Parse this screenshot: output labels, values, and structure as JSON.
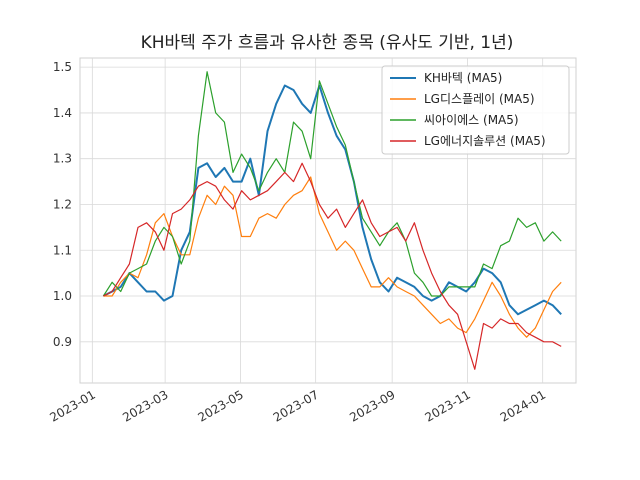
{
  "chart_data": {
    "type": "line",
    "title": "KH바텍 주가 흐름과 유사한 종목 (유사도 기반, 1년)",
    "xlabel": "",
    "ylabel": "",
    "x_ticks": [
      "2023-01",
      "2023-03",
      "2023-05",
      "2023-07",
      "2023-09",
      "2023-11",
      "2024-01"
    ],
    "y_ticks": [
      "0.9",
      "1.0",
      "1.1",
      "1.2",
      "1.3",
      "1.4",
      "1.5"
    ],
    "xlim": [
      "2022-12-22",
      "2024-01-28"
    ],
    "ylim": [
      0.81,
      1.52
    ],
    "grid": true,
    "legend_position": "top-right",
    "series": [
      {
        "name": "KH바텍 (MA5)",
        "color": "#1f77b4",
        "points": [
          [
            "2023-01-10",
            1.0
          ],
          [
            "2023-01-17",
            1.01
          ],
          [
            "2023-01-24",
            1.02
          ],
          [
            "2023-01-31",
            1.05
          ],
          [
            "2023-02-07",
            1.03
          ],
          [
            "2023-02-14",
            1.01
          ],
          [
            "2023-02-21",
            1.01
          ],
          [
            "2023-02-28",
            0.99
          ],
          [
            "2023-03-07",
            1.0
          ],
          [
            "2023-03-14",
            1.1
          ],
          [
            "2023-03-21",
            1.14
          ],
          [
            "2023-03-28",
            1.28
          ],
          [
            "2023-04-04",
            1.29
          ],
          [
            "2023-04-11",
            1.26
          ],
          [
            "2023-04-18",
            1.28
          ],
          [
            "2023-04-25",
            1.25
          ],
          [
            "2023-05-02",
            1.25
          ],
          [
            "2023-05-09",
            1.3
          ],
          [
            "2023-05-16",
            1.22
          ],
          [
            "2023-05-23",
            1.36
          ],
          [
            "2023-05-30",
            1.42
          ],
          [
            "2023-06-06",
            1.46
          ],
          [
            "2023-06-13",
            1.45
          ],
          [
            "2023-06-20",
            1.42
          ],
          [
            "2023-06-27",
            1.4
          ],
          [
            "2023-07-04",
            1.46
          ],
          [
            "2023-07-11",
            1.4
          ],
          [
            "2023-07-18",
            1.35
          ],
          [
            "2023-07-25",
            1.32
          ],
          [
            "2023-08-01",
            1.25
          ],
          [
            "2023-08-08",
            1.15
          ],
          [
            "2023-08-15",
            1.08
          ],
          [
            "2023-08-22",
            1.03
          ],
          [
            "2023-08-29",
            1.01
          ],
          [
            "2023-09-05",
            1.04
          ],
          [
            "2023-09-12",
            1.03
          ],
          [
            "2023-09-19",
            1.02
          ],
          [
            "2023-09-26",
            1.0
          ],
          [
            "2023-10-03",
            0.99
          ],
          [
            "2023-10-10",
            1.0
          ],
          [
            "2023-10-17",
            1.03
          ],
          [
            "2023-10-24",
            1.02
          ],
          [
            "2023-10-31",
            1.01
          ],
          [
            "2023-11-07",
            1.03
          ],
          [
            "2023-11-14",
            1.06
          ],
          [
            "2023-11-21",
            1.05
          ],
          [
            "2023-11-28",
            1.03
          ],
          [
            "2023-12-05",
            0.98
          ],
          [
            "2023-12-12",
            0.96
          ],
          [
            "2023-12-19",
            0.97
          ],
          [
            "2023-12-26",
            0.98
          ],
          [
            "2024-01-02",
            0.99
          ],
          [
            "2024-01-09",
            0.98
          ],
          [
            "2024-01-16",
            0.96
          ]
        ]
      },
      {
        "name": "LG디스플레이 (MA5)",
        "color": "#ff7f0e",
        "points": [
          [
            "2023-01-10",
            1.0
          ],
          [
            "2023-01-17",
            1.0
          ],
          [
            "2023-01-24",
            1.03
          ],
          [
            "2023-01-31",
            1.05
          ],
          [
            "2023-02-07",
            1.04
          ],
          [
            "2023-02-14",
            1.09
          ],
          [
            "2023-02-21",
            1.16
          ],
          [
            "2023-02-28",
            1.18
          ],
          [
            "2023-03-07",
            1.13
          ],
          [
            "2023-03-14",
            1.09
          ],
          [
            "2023-03-21",
            1.09
          ],
          [
            "2023-03-28",
            1.17
          ],
          [
            "2023-04-04",
            1.22
          ],
          [
            "2023-04-11",
            1.2
          ],
          [
            "2023-04-18",
            1.24
          ],
          [
            "2023-04-25",
            1.22
          ],
          [
            "2023-05-02",
            1.13
          ],
          [
            "2023-05-09",
            1.13
          ],
          [
            "2023-05-16",
            1.17
          ],
          [
            "2023-05-23",
            1.18
          ],
          [
            "2023-05-30",
            1.17
          ],
          [
            "2023-06-06",
            1.2
          ],
          [
            "2023-06-13",
            1.22
          ],
          [
            "2023-06-20",
            1.23
          ],
          [
            "2023-06-27",
            1.26
          ],
          [
            "2023-07-04",
            1.18
          ],
          [
            "2023-07-11",
            1.14
          ],
          [
            "2023-07-18",
            1.1
          ],
          [
            "2023-07-25",
            1.12
          ],
          [
            "2023-08-01",
            1.1
          ],
          [
            "2023-08-08",
            1.06
          ],
          [
            "2023-08-15",
            1.02
          ],
          [
            "2023-08-22",
            1.02
          ],
          [
            "2023-08-29",
            1.04
          ],
          [
            "2023-09-05",
            1.02
          ],
          [
            "2023-09-12",
            1.01
          ],
          [
            "2023-09-19",
            1.0
          ],
          [
            "2023-09-26",
            0.98
          ],
          [
            "2023-10-03",
            0.96
          ],
          [
            "2023-10-10",
            0.94
          ],
          [
            "2023-10-17",
            0.95
          ],
          [
            "2023-10-24",
            0.93
          ],
          [
            "2023-10-31",
            0.92
          ],
          [
            "2023-11-07",
            0.95
          ],
          [
            "2023-11-14",
            0.99
          ],
          [
            "2023-11-21",
            1.03
          ],
          [
            "2023-11-28",
            1.0
          ],
          [
            "2023-12-05",
            0.96
          ],
          [
            "2023-12-12",
            0.93
          ],
          [
            "2023-12-19",
            0.91
          ],
          [
            "2023-12-26",
            0.93
          ],
          [
            "2024-01-02",
            0.97
          ],
          [
            "2024-01-09",
            1.01
          ],
          [
            "2024-01-16",
            1.03
          ]
        ]
      },
      {
        "name": "씨아이에스 (MA5)",
        "color": "#2ca02c",
        "points": [
          [
            "2023-01-10",
            1.0
          ],
          [
            "2023-01-17",
            1.03
          ],
          [
            "2023-01-24",
            1.01
          ],
          [
            "2023-01-31",
            1.05
          ],
          [
            "2023-02-07",
            1.06
          ],
          [
            "2023-02-14",
            1.07
          ],
          [
            "2023-02-21",
            1.12
          ],
          [
            "2023-02-28",
            1.15
          ],
          [
            "2023-03-07",
            1.13
          ],
          [
            "2023-03-14",
            1.07
          ],
          [
            "2023-03-21",
            1.12
          ],
          [
            "2023-03-28",
            1.35
          ],
          [
            "2023-04-04",
            1.49
          ],
          [
            "2023-04-11",
            1.4
          ],
          [
            "2023-04-18",
            1.38
          ],
          [
            "2023-04-25",
            1.27
          ],
          [
            "2023-05-02",
            1.31
          ],
          [
            "2023-05-09",
            1.28
          ],
          [
            "2023-05-16",
            1.23
          ],
          [
            "2023-05-23",
            1.27
          ],
          [
            "2023-05-30",
            1.3
          ],
          [
            "2023-06-06",
            1.27
          ],
          [
            "2023-06-13",
            1.38
          ],
          [
            "2023-06-20",
            1.36
          ],
          [
            "2023-06-27",
            1.3
          ],
          [
            "2023-07-04",
            1.47
          ],
          [
            "2023-07-11",
            1.42
          ],
          [
            "2023-07-18",
            1.37
          ],
          [
            "2023-07-25",
            1.33
          ],
          [
            "2023-08-01",
            1.25
          ],
          [
            "2023-08-08",
            1.17
          ],
          [
            "2023-08-15",
            1.14
          ],
          [
            "2023-08-22",
            1.11
          ],
          [
            "2023-08-29",
            1.14
          ],
          [
            "2023-09-05",
            1.16
          ],
          [
            "2023-09-12",
            1.12
          ],
          [
            "2023-09-19",
            1.05
          ],
          [
            "2023-09-26",
            1.03
          ],
          [
            "2023-10-03",
            1.0
          ],
          [
            "2023-10-10",
            1.0
          ],
          [
            "2023-10-17",
            1.02
          ],
          [
            "2023-10-24",
            1.02
          ],
          [
            "2023-10-31",
            1.02
          ],
          [
            "2023-11-07",
            1.02
          ],
          [
            "2023-11-14",
            1.07
          ],
          [
            "2023-11-21",
            1.06
          ],
          [
            "2023-11-28",
            1.11
          ],
          [
            "2023-12-05",
            1.12
          ],
          [
            "2023-12-12",
            1.17
          ],
          [
            "2023-12-19",
            1.15
          ],
          [
            "2023-12-26",
            1.16
          ],
          [
            "2024-01-02",
            1.12
          ],
          [
            "2024-01-09",
            1.14
          ],
          [
            "2024-01-16",
            1.12
          ]
        ]
      },
      {
        "name": "LG에너지솔루션 (MA5)",
        "color": "#d62728",
        "points": [
          [
            "2023-01-10",
            1.0
          ],
          [
            "2023-01-17",
            1.01
          ],
          [
            "2023-01-24",
            1.04
          ],
          [
            "2023-01-31",
            1.07
          ],
          [
            "2023-02-07",
            1.15
          ],
          [
            "2023-02-14",
            1.16
          ],
          [
            "2023-02-21",
            1.14
          ],
          [
            "2023-02-28",
            1.1
          ],
          [
            "2023-03-07",
            1.18
          ],
          [
            "2023-03-14",
            1.19
          ],
          [
            "2023-03-21",
            1.21
          ],
          [
            "2023-03-28",
            1.24
          ],
          [
            "2023-04-04",
            1.25
          ],
          [
            "2023-04-11",
            1.24
          ],
          [
            "2023-04-18",
            1.21
          ],
          [
            "2023-04-25",
            1.19
          ],
          [
            "2023-05-02",
            1.23
          ],
          [
            "2023-05-09",
            1.21
          ],
          [
            "2023-05-16",
            1.22
          ],
          [
            "2023-05-23",
            1.23
          ],
          [
            "2023-05-30",
            1.25
          ],
          [
            "2023-06-06",
            1.27
          ],
          [
            "2023-06-13",
            1.25
          ],
          [
            "2023-06-20",
            1.29
          ],
          [
            "2023-06-27",
            1.25
          ],
          [
            "2023-07-04",
            1.2
          ],
          [
            "2023-07-11",
            1.17
          ],
          [
            "2023-07-18",
            1.19
          ],
          [
            "2023-07-25",
            1.15
          ],
          [
            "2023-08-01",
            1.18
          ],
          [
            "2023-08-08",
            1.21
          ],
          [
            "2023-08-15",
            1.16
          ],
          [
            "2023-08-22",
            1.13
          ],
          [
            "2023-08-29",
            1.14
          ],
          [
            "2023-09-05",
            1.15
          ],
          [
            "2023-09-12",
            1.12
          ],
          [
            "2023-09-19",
            1.16
          ],
          [
            "2023-09-26",
            1.1
          ],
          [
            "2023-10-03",
            1.05
          ],
          [
            "2023-10-10",
            1.01
          ],
          [
            "2023-10-17",
            0.98
          ],
          [
            "2023-10-24",
            0.96
          ],
          [
            "2023-10-31",
            0.9
          ],
          [
            "2023-11-07",
            0.84
          ],
          [
            "2023-11-14",
            0.94
          ],
          [
            "2023-11-21",
            0.93
          ],
          [
            "2023-11-28",
            0.95
          ],
          [
            "2023-12-05",
            0.94
          ],
          [
            "2023-12-12",
            0.94
          ],
          [
            "2023-12-19",
            0.92
          ],
          [
            "2023-12-26",
            0.91
          ],
          [
            "2024-01-02",
            0.9
          ],
          [
            "2024-01-09",
            0.9
          ],
          [
            "2024-01-16",
            0.89
          ]
        ]
      }
    ]
  }
}
